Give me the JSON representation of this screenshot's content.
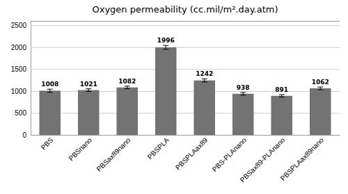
{
  "chart_data": {
    "type": "bar",
    "title": "Oxygen permeability (cc.mil/m².day.atm)",
    "categories": [
      "PBS",
      "PBSnano",
      "PBSax89nano",
      "PBSPLA",
      "PBSPLAax89",
      "PBS-PLAnano",
      "PBSax89-PLAnano",
      "PBSPLAax89nano"
    ],
    "values": [
      1008,
      1021,
      1082,
      1996,
      1242,
      938,
      891,
      1062
    ],
    "errors": [
      35,
      30,
      30,
      45,
      35,
      30,
      28,
      30
    ],
    "color": "#737373",
    "ylim": [
      0,
      2600
    ],
    "yticks": [
      0,
      500,
      1000,
      1500,
      2000,
      2500
    ],
    "grid": true,
    "data_labels": true
  }
}
